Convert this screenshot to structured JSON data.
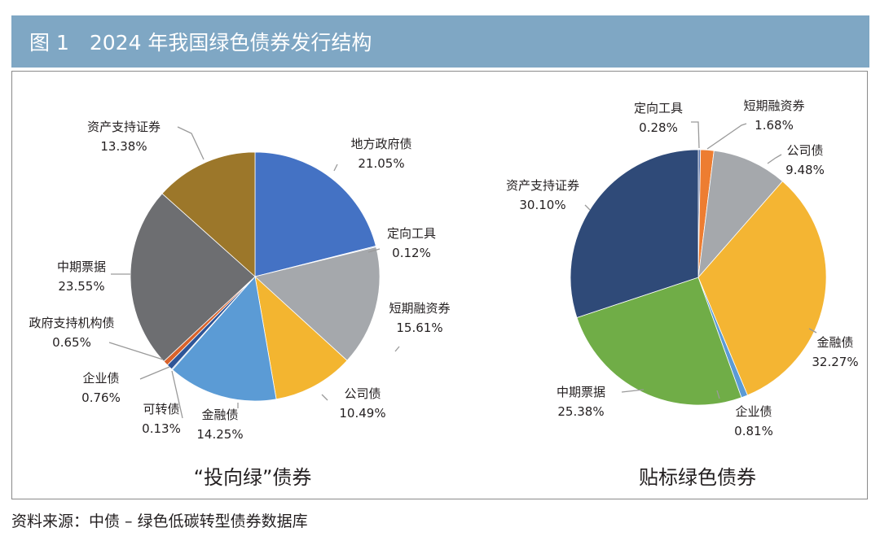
{
  "figure": {
    "title": "图 1　2024 年我国绿色债券发行结构",
    "source": "资料来源：中债 – 绿色低碳转型债券数据库"
  },
  "chart_data": [
    {
      "type": "pie",
      "title": "“投向绿”债券",
      "slices": [
        {
          "label": "地方政府债",
          "value": 21.05,
          "value_text": "21.05%",
          "color": "#4472c4"
        },
        {
          "label": "定向工具",
          "value": 0.12,
          "value_text": "0.12%",
          "color": "#7a9fd6"
        },
        {
          "label": "短期融资券",
          "value": 15.61,
          "value_text": "15.61%",
          "color": "#a5a8ac"
        },
        {
          "label": "公司债",
          "value": 10.49,
          "value_text": "10.49%",
          "color": "#f3b530"
        },
        {
          "label": "金融债",
          "value": 14.25,
          "value_text": "14.25%",
          "color": "#5b9bd5"
        },
        {
          "label": "可转债",
          "value": 0.13,
          "value_text": "0.13%",
          "color": "#9bb7d9"
        },
        {
          "label": "企业债",
          "value": 0.76,
          "value_text": "0.76%",
          "color": "#2f5597"
        },
        {
          "label": "政府支持机构债",
          "value": 0.65,
          "value_text": "0.65%",
          "color": "#d9622b"
        },
        {
          "label": "中期票据",
          "value": 23.55,
          "value_text": "23.55%",
          "color": "#6d6e71"
        },
        {
          "label": "资产支持证券",
          "value": 13.38,
          "value_text": "13.38%",
          "color": "#9c772a"
        }
      ]
    },
    {
      "type": "pie",
      "title": "贴标绿色债券",
      "slices": [
        {
          "label": "定向工具",
          "value": 0.28,
          "value_text": "0.28%",
          "color": "#5b73a8"
        },
        {
          "label": "短期融资券",
          "value": 1.68,
          "value_text": "1.68%",
          "color": "#ed7d31"
        },
        {
          "label": "公司债",
          "value": 9.48,
          "value_text": "9.48%",
          "color": "#a5a8ac"
        },
        {
          "label": "金融债",
          "value": 32.27,
          "value_text": "32.27%",
          "color": "#f4b533"
        },
        {
          "label": "企业债",
          "value": 0.81,
          "value_text": "0.81%",
          "color": "#5b9bd5"
        },
        {
          "label": "中期票据",
          "value": 25.38,
          "value_text": "25.38%",
          "color": "#70ad47"
        },
        {
          "label": "资产支持证券",
          "value": 30.1,
          "value_text": "30.10%",
          "color": "#2f4a78"
        }
      ]
    }
  ]
}
